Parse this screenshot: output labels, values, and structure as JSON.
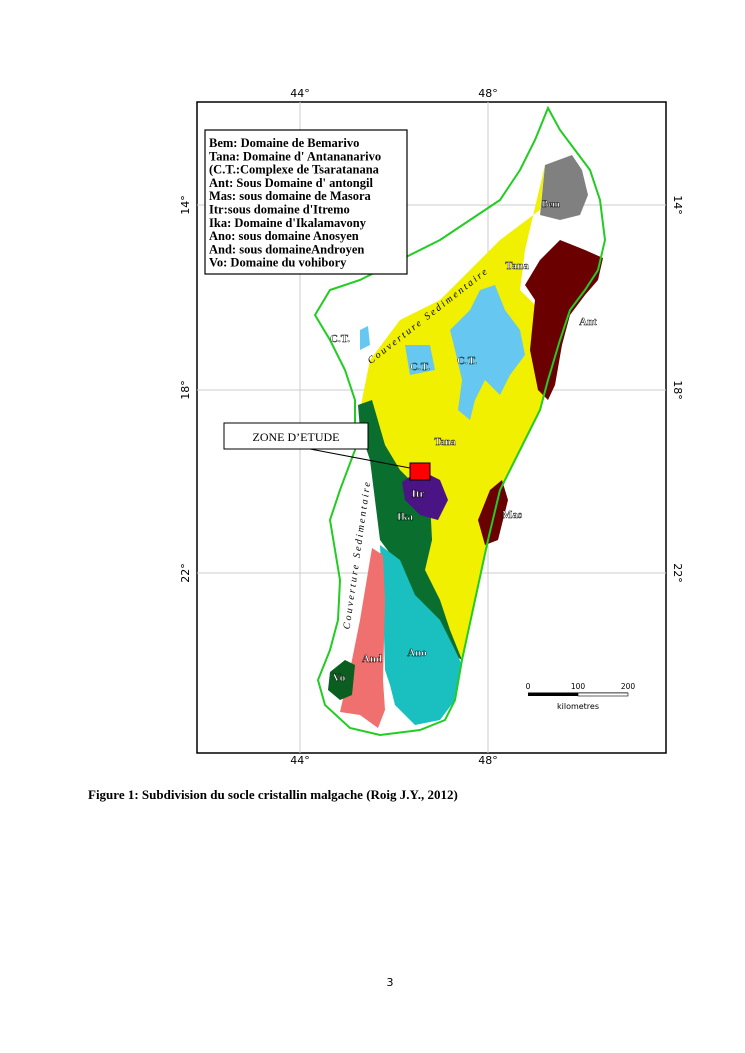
{
  "map": {
    "lon_labels": [
      "44°",
      "48°"
    ],
    "lat_labels": [
      "14°",
      "18°",
      "22°"
    ],
    "legend": [
      "Bem: Domaine de Bemarivo",
      "Tana: Domaine d' Antananarivo",
      "(C.T.:Complexe de Tsaratanana",
      "Ant: Sous Domaine d' antongil",
      "Mas: sous domaine de Masora",
      "Itr:sous domaine d'Itremo",
      "Ika: Domaine d'Ikalamavony",
      "Ano: sous domaine Anosyen",
      "And: sous domaineAndroyen",
      "Vo: Domaine du vohibory"
    ],
    "regions": [
      "Bem",
      "Tana",
      "Ant",
      "C.T.",
      "C.T.",
      "C.T.",
      "Tana",
      "Itr",
      "Ika",
      "Mas",
      "Ano",
      "And",
      "Vo"
    ],
    "sedimentary_cover": [
      "Couverture Sedimentaire",
      "Couverture Sedimentaire"
    ],
    "study_zone": "ZONE D’ETUDE",
    "scale": {
      "ticks": [
        0,
        100,
        200
      ],
      "unit": "kilometres"
    }
  },
  "caption": "Figure 1: Subdivision du socle cristallin malgache (Roig J.Y., 2012)",
  "page_number": "3"
}
